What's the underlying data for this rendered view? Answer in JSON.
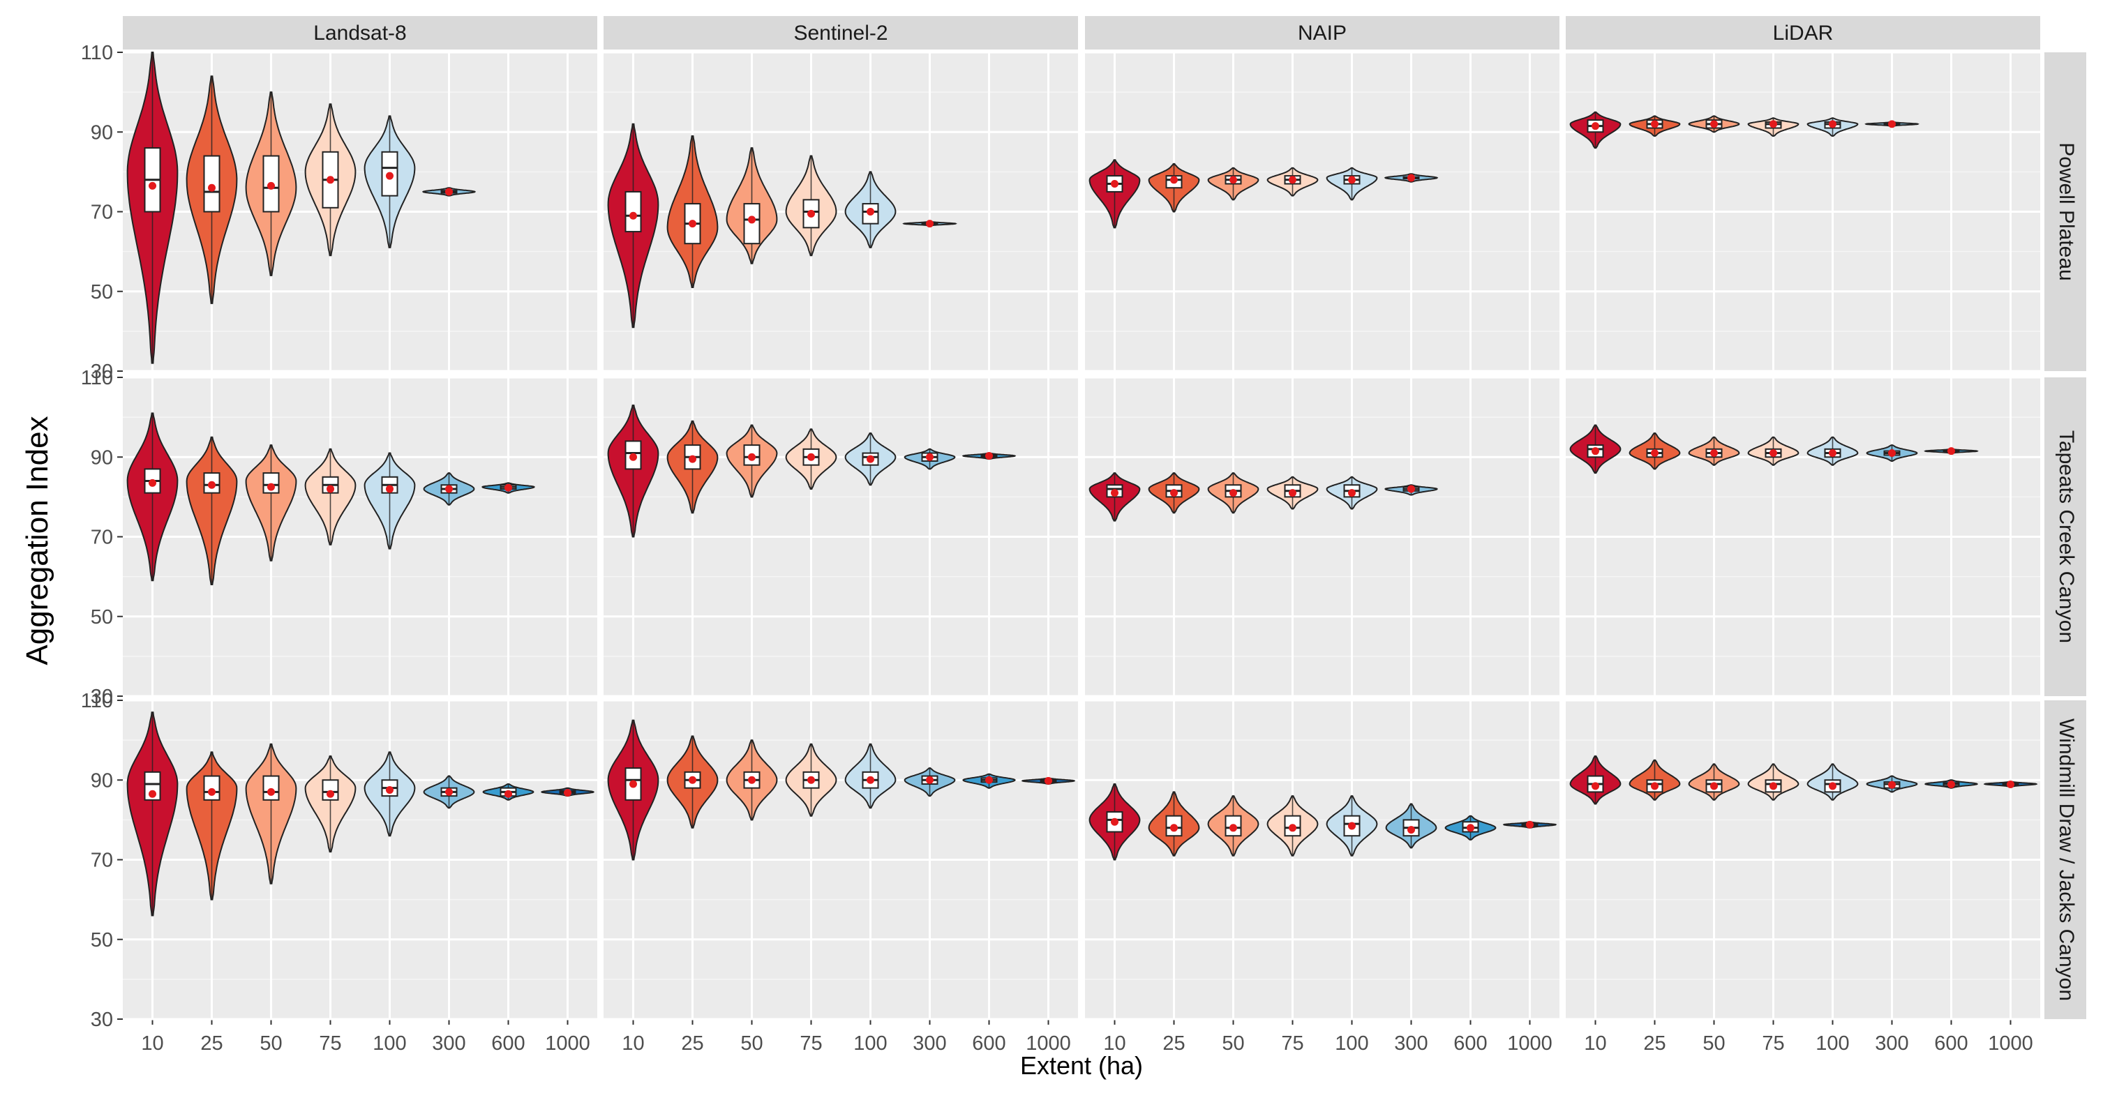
{
  "chart_data": {
    "type": "violin",
    "ylabel": "Aggregation Index",
    "xlabel": "Extent (ha)",
    "ylim": [
      30,
      110
    ],
    "yticks": [
      30,
      50,
      70,
      90,
      110
    ],
    "grid": true,
    "categories": [
      "10",
      "25",
      "50",
      "75",
      "100",
      "300",
      "600",
      "1000"
    ],
    "category_colors": [
      "#c8102e",
      "#e8603c",
      "#f9a07d",
      "#fdd8c4",
      "#c6e0ef",
      "#85c0df",
      "#3a9dd0",
      "#1b6fb5"
    ],
    "mean_marker_color": "#e41a1c",
    "columns": [
      "Landsat-8",
      "Sentinel-2",
      "NAIP",
      "LiDAR"
    ],
    "rows": [
      "Powell Plateau",
      "Tapeats Creek Canyon",
      "Windmill Draw / Jacks Canyon"
    ],
    "panels": [
      {
        "row": 0,
        "col": 0,
        "violins": [
          {
            "cat": "10",
            "min": 32,
            "max": 110,
            "q1": 70,
            "median": 78,
            "q3": 86,
            "mean": 76.5,
            "mode": 80
          },
          {
            "cat": "25",
            "min": 47,
            "max": 104,
            "q1": 70,
            "median": 75,
            "q3": 84,
            "mean": 76,
            "mode": 78
          },
          {
            "cat": "50",
            "min": 54,
            "max": 100,
            "q1": 70,
            "median": 76,
            "q3": 84,
            "mean": 76.5,
            "mode": 76
          },
          {
            "cat": "75",
            "min": 59,
            "max": 97,
            "q1": 71,
            "median": 78,
            "q3": 85,
            "mean": 78,
            "mode": 80
          },
          {
            "cat": "100",
            "min": 61,
            "max": 94,
            "q1": 74,
            "median": 81,
            "q3": 85,
            "mean": 79,
            "mode": 81
          },
          {
            "cat": "300",
            "min": 74,
            "max": 76,
            "q1": 74.7,
            "median": 75,
            "q3": 75.3,
            "mean": 75,
            "mode": 75
          }
        ]
      },
      {
        "row": 0,
        "col": 1,
        "violins": [
          {
            "cat": "10",
            "min": 41,
            "max": 92,
            "q1": 65,
            "median": 69,
            "q3": 75,
            "mean": 69,
            "mode": 72
          },
          {
            "cat": "25",
            "min": 51,
            "max": 89,
            "q1": 62,
            "median": 67,
            "q3": 72,
            "mean": 67,
            "mode": 66
          },
          {
            "cat": "50",
            "min": 57,
            "max": 86,
            "q1": 62,
            "median": 68,
            "q3": 72,
            "mean": 68,
            "mode": 68
          },
          {
            "cat": "75",
            "min": 59,
            "max": 84,
            "q1": 66,
            "median": 70,
            "q3": 73,
            "mean": 69.5,
            "mode": 70
          },
          {
            "cat": "100",
            "min": 61,
            "max": 80,
            "q1": 67,
            "median": 70,
            "q3": 72,
            "mean": 70,
            "mode": 70
          },
          {
            "cat": "300",
            "min": 66.5,
            "max": 67.5,
            "q1": 66.8,
            "median": 67,
            "q3": 67.2,
            "mean": 67,
            "mode": 67
          }
        ]
      },
      {
        "row": 0,
        "col": 2,
        "violins": [
          {
            "cat": "10",
            "min": 66,
            "max": 83,
            "q1": 75,
            "median": 77,
            "q3": 79,
            "mean": 77,
            "mode": 78
          },
          {
            "cat": "25",
            "min": 70,
            "max": 82,
            "q1": 76,
            "median": 78,
            "q3": 79,
            "mean": 78,
            "mode": 78
          },
          {
            "cat": "50",
            "min": 73,
            "max": 81,
            "q1": 77,
            "median": 78,
            "q3": 79,
            "mean": 78,
            "mode": 78
          },
          {
            "cat": "75",
            "min": 74,
            "max": 81,
            "q1": 77,
            "median": 78,
            "q3": 79,
            "mean": 78,
            "mode": 78
          },
          {
            "cat": "100",
            "min": 73,
            "max": 81,
            "q1": 77,
            "median": 78,
            "q3": 79,
            "mean": 78,
            "mode": 78.5
          },
          {
            "cat": "300",
            "min": 77.5,
            "max": 79.5,
            "q1": 78.3,
            "median": 78.5,
            "q3": 78.7,
            "mean": 78.5,
            "mode": 78.5
          }
        ]
      },
      {
        "row": 0,
        "col": 3,
        "violins": [
          {
            "cat": "10",
            "min": 86,
            "max": 95,
            "q1": 90,
            "median": 91.5,
            "q3": 93,
            "mean": 91.5,
            "mode": 92
          },
          {
            "cat": "25",
            "min": 89,
            "max": 94,
            "q1": 91,
            "median": 92,
            "q3": 93,
            "mean": 92,
            "mode": 92
          },
          {
            "cat": "50",
            "min": 90,
            "max": 94,
            "q1": 91,
            "median": 92,
            "q3": 93,
            "mean": 92,
            "mode": 92
          },
          {
            "cat": "75",
            "min": 89,
            "max": 93.5,
            "q1": 91,
            "median": 92,
            "q3": 92.5,
            "mean": 92,
            "mode": 92
          },
          {
            "cat": "100",
            "min": 89,
            "max": 93.5,
            "q1": 91,
            "median": 92,
            "q3": 92.5,
            "mean": 92,
            "mode": 92
          },
          {
            "cat": "300",
            "min": 91.5,
            "max": 92.5,
            "q1": 91.8,
            "median": 92,
            "q3": 92.2,
            "mean": 92,
            "mode": 92
          }
        ]
      },
      {
        "row": 1,
        "col": 0,
        "violins": [
          {
            "cat": "10",
            "min": 59,
            "max": 101,
            "q1": 81,
            "median": 84,
            "q3": 87,
            "mean": 83.5,
            "mode": 84
          },
          {
            "cat": "25",
            "min": 58,
            "max": 95,
            "q1": 81,
            "median": 83,
            "q3": 86,
            "mean": 83,
            "mode": 84
          },
          {
            "cat": "50",
            "min": 64,
            "max": 93,
            "q1": 81,
            "median": 83,
            "q3": 86,
            "mean": 82.5,
            "mode": 84
          },
          {
            "cat": "75",
            "min": 68,
            "max": 92,
            "q1": 81,
            "median": 83,
            "q3": 85,
            "mean": 82,
            "mode": 83
          },
          {
            "cat": "100",
            "min": 67,
            "max": 91,
            "q1": 81,
            "median": 83,
            "q3": 85,
            "mean": 82,
            "mode": 83
          },
          {
            "cat": "300",
            "min": 78,
            "max": 86,
            "q1": 81,
            "median": 82,
            "q3": 83,
            "mean": 82,
            "mode": 82
          },
          {
            "cat": "600",
            "min": 81,
            "max": 83.5,
            "q1": 82,
            "median": 82.5,
            "q3": 83,
            "mean": 82.3,
            "mode": 82.5
          }
        ]
      },
      {
        "row": 1,
        "col": 1,
        "violins": [
          {
            "cat": "10",
            "min": 70,
            "max": 103,
            "q1": 87,
            "median": 91,
            "q3": 94,
            "mean": 90,
            "mode": 91
          },
          {
            "cat": "25",
            "min": 76,
            "max": 99,
            "q1": 87,
            "median": 90,
            "q3": 93,
            "mean": 89.5,
            "mode": 90
          },
          {
            "cat": "50",
            "min": 80,
            "max": 98,
            "q1": 88,
            "median": 90,
            "q3": 93,
            "mean": 90,
            "mode": 91
          },
          {
            "cat": "75",
            "min": 82,
            "max": 97,
            "q1": 88,
            "median": 90,
            "q3": 92,
            "mean": 90,
            "mode": 90
          },
          {
            "cat": "100",
            "min": 83,
            "max": 96,
            "q1": 88,
            "median": 90,
            "q3": 91,
            "mean": 89.5,
            "mode": 90
          },
          {
            "cat": "300",
            "min": 87,
            "max": 92,
            "q1": 89,
            "median": 90,
            "q3": 91,
            "mean": 90,
            "mode": 90
          },
          {
            "cat": "600",
            "min": 89.5,
            "max": 91,
            "q1": 90,
            "median": 90.3,
            "q3": 90.6,
            "mean": 90.3,
            "mode": 90.3
          }
        ]
      },
      {
        "row": 1,
        "col": 2,
        "violins": [
          {
            "cat": "10",
            "min": 74,
            "max": 86,
            "q1": 80,
            "median": 82,
            "q3": 83,
            "mean": 81,
            "mode": 82
          },
          {
            "cat": "25",
            "min": 76,
            "max": 86,
            "q1": 80,
            "median": 81.5,
            "q3": 83,
            "mean": 81,
            "mode": 82
          },
          {
            "cat": "50",
            "min": 76,
            "max": 86,
            "q1": 80,
            "median": 81.5,
            "q3": 83,
            "mean": 81,
            "mode": 82
          },
          {
            "cat": "75",
            "min": 77,
            "max": 85,
            "q1": 80,
            "median": 81.5,
            "q3": 83,
            "mean": 81,
            "mode": 82
          },
          {
            "cat": "100",
            "min": 77,
            "max": 85,
            "q1": 80,
            "median": 81.5,
            "q3": 83,
            "mean": 81,
            "mode": 82
          },
          {
            "cat": "300",
            "min": 80.5,
            "max": 83,
            "q1": 81.5,
            "median": 82,
            "q3": 82.5,
            "mean": 82,
            "mode": 82
          }
        ]
      },
      {
        "row": 1,
        "col": 3,
        "violins": [
          {
            "cat": "10",
            "min": 86,
            "max": 98,
            "q1": 90,
            "median": 92,
            "q3": 93,
            "mean": 91.5,
            "mode": 92
          },
          {
            "cat": "25",
            "min": 87,
            "max": 96,
            "q1": 90,
            "median": 91,
            "q3": 92,
            "mean": 91,
            "mode": 91
          },
          {
            "cat": "50",
            "min": 88,
            "max": 95,
            "q1": 90,
            "median": 91,
            "q3": 92,
            "mean": 91,
            "mode": 91
          },
          {
            "cat": "75",
            "min": 88,
            "max": 95,
            "q1": 90,
            "median": 91,
            "q3": 92,
            "mean": 91,
            "mode": 91
          },
          {
            "cat": "100",
            "min": 88,
            "max": 95,
            "q1": 90,
            "median": 91,
            "q3": 92,
            "mean": 91,
            "mode": 91
          },
          {
            "cat": "300",
            "min": 89,
            "max": 93,
            "q1": 90.5,
            "median": 91,
            "q3": 91.5,
            "mean": 91,
            "mode": 91
          },
          {
            "cat": "600",
            "min": 91,
            "max": 92,
            "q1": 91.3,
            "median": 91.5,
            "q3": 91.7,
            "mean": 91.5,
            "mode": 91.5
          }
        ]
      },
      {
        "row": 2,
        "col": 0,
        "violins": [
          {
            "cat": "10",
            "min": 56,
            "max": 107,
            "q1": 85,
            "median": 89,
            "q3": 92,
            "mean": 86.5,
            "mode": 89
          },
          {
            "cat": "25",
            "min": 60,
            "max": 97,
            "q1": 85,
            "median": 87,
            "q3": 91,
            "mean": 87,
            "mode": 88
          },
          {
            "cat": "50",
            "min": 64,
            "max": 99,
            "q1": 85,
            "median": 87,
            "q3": 91,
            "mean": 87,
            "mode": 88
          },
          {
            "cat": "75",
            "min": 72,
            "max": 96,
            "q1": 85,
            "median": 87,
            "q3": 90,
            "mean": 86.5,
            "mode": 88
          },
          {
            "cat": "100",
            "min": 76,
            "max": 97,
            "q1": 86,
            "median": 88,
            "q3": 90,
            "mean": 87.5,
            "mode": 88
          },
          {
            "cat": "300",
            "min": 83,
            "max": 91,
            "q1": 86,
            "median": 87,
            "q3": 88,
            "mean": 87,
            "mode": 87
          },
          {
            "cat": "600",
            "min": 85,
            "max": 89,
            "q1": 86,
            "median": 87,
            "q3": 88,
            "mean": 86.5,
            "mode": 87
          },
          {
            "cat": "1000",
            "min": 86,
            "max": 88,
            "q1": 86.7,
            "median": 87,
            "q3": 87.3,
            "mean": 86.8,
            "mode": 87
          }
        ]
      },
      {
        "row": 2,
        "col": 1,
        "violins": [
          {
            "cat": "10",
            "min": 70,
            "max": 105,
            "q1": 85,
            "median": 90,
            "q3": 93,
            "mean": 89,
            "mode": 90
          },
          {
            "cat": "25",
            "min": 78,
            "max": 101,
            "q1": 88,
            "median": 90,
            "q3": 92,
            "mean": 90,
            "mode": 90
          },
          {
            "cat": "50",
            "min": 80,
            "max": 100,
            "q1": 88,
            "median": 90,
            "q3": 92,
            "mean": 90,
            "mode": 90
          },
          {
            "cat": "75",
            "min": 81,
            "max": 99,
            "q1": 88,
            "median": 90,
            "q3": 92,
            "mean": 90,
            "mode": 90
          },
          {
            "cat": "100",
            "min": 83,
            "max": 99,
            "q1": 88,
            "median": 90,
            "q3": 92,
            "mean": 90,
            "mode": 90
          },
          {
            "cat": "300",
            "min": 86,
            "max": 93,
            "q1": 89,
            "median": 90,
            "q3": 91,
            "mean": 90,
            "mode": 90
          },
          {
            "cat": "600",
            "min": 88,
            "max": 91.5,
            "q1": 89.5,
            "median": 90,
            "q3": 90.5,
            "mean": 90,
            "mode": 90
          },
          {
            "cat": "1000",
            "min": 89,
            "max": 90.5,
            "q1": 89.5,
            "median": 89.8,
            "q3": 90,
            "mean": 89.8,
            "mode": 89.8
          }
        ]
      },
      {
        "row": 2,
        "col": 2,
        "violins": [
          {
            "cat": "10",
            "min": 70,
            "max": 89,
            "q1": 77,
            "median": 80,
            "q3": 82,
            "mean": 79.5,
            "mode": 80
          },
          {
            "cat": "25",
            "min": 71,
            "max": 87,
            "q1": 76,
            "median": 78,
            "q3": 81,
            "mean": 78,
            "mode": 78
          },
          {
            "cat": "50",
            "min": 71,
            "max": 86,
            "q1": 76,
            "median": 78,
            "q3": 81,
            "mean": 78,
            "mode": 79
          },
          {
            "cat": "75",
            "min": 71,
            "max": 86,
            "q1": 76,
            "median": 78,
            "q3": 81,
            "mean": 78,
            "mode": 79
          },
          {
            "cat": "100",
            "min": 71,
            "max": 86,
            "q1": 76,
            "median": 79,
            "q3": 81,
            "mean": 78.5,
            "mode": 79
          },
          {
            "cat": "300",
            "min": 73,
            "max": 84,
            "q1": 76,
            "median": 78,
            "q3": 80,
            "mean": 77.5,
            "mode": 78
          },
          {
            "cat": "600",
            "min": 75,
            "max": 81,
            "q1": 77,
            "median": 78,
            "q3": 79.5,
            "mean": 78,
            "mode": 78
          },
          {
            "cat": "1000",
            "min": 78,
            "max": 79.5,
            "q1": 78.5,
            "median": 78.8,
            "q3": 79,
            "mean": 78.8,
            "mode": 78.8
          }
        ]
      },
      {
        "row": 2,
        "col": 3,
        "violins": [
          {
            "cat": "10",
            "min": 84,
            "max": 96,
            "q1": 87,
            "median": 89,
            "q3": 91,
            "mean": 88.5,
            "mode": 89
          },
          {
            "cat": "25",
            "min": 85,
            "max": 95,
            "q1": 87,
            "median": 89,
            "q3": 90,
            "mean": 88.5,
            "mode": 89
          },
          {
            "cat": "50",
            "min": 85,
            "max": 94,
            "q1": 87,
            "median": 89,
            "q3": 90,
            "mean": 88.5,
            "mode": 89
          },
          {
            "cat": "75",
            "min": 85,
            "max": 94,
            "q1": 87,
            "median": 89,
            "q3": 90,
            "mean": 88.5,
            "mode": 89
          },
          {
            "cat": "100",
            "min": 85,
            "max": 94,
            "q1": 87,
            "median": 89,
            "q3": 90,
            "mean": 88.5,
            "mode": 89
          },
          {
            "cat": "300",
            "min": 87,
            "max": 91,
            "q1": 88,
            "median": 89,
            "q3": 89.5,
            "mean": 88.8,
            "mode": 89
          },
          {
            "cat": "600",
            "min": 88,
            "max": 90,
            "q1": 88.5,
            "median": 89,
            "q3": 89.3,
            "mean": 88.9,
            "mode": 89
          },
          {
            "cat": "1000",
            "min": 88.3,
            "max": 89.6,
            "q1": 88.7,
            "median": 89,
            "q3": 89.2,
            "mean": 88.9,
            "mode": 89
          }
        ]
      }
    ]
  }
}
